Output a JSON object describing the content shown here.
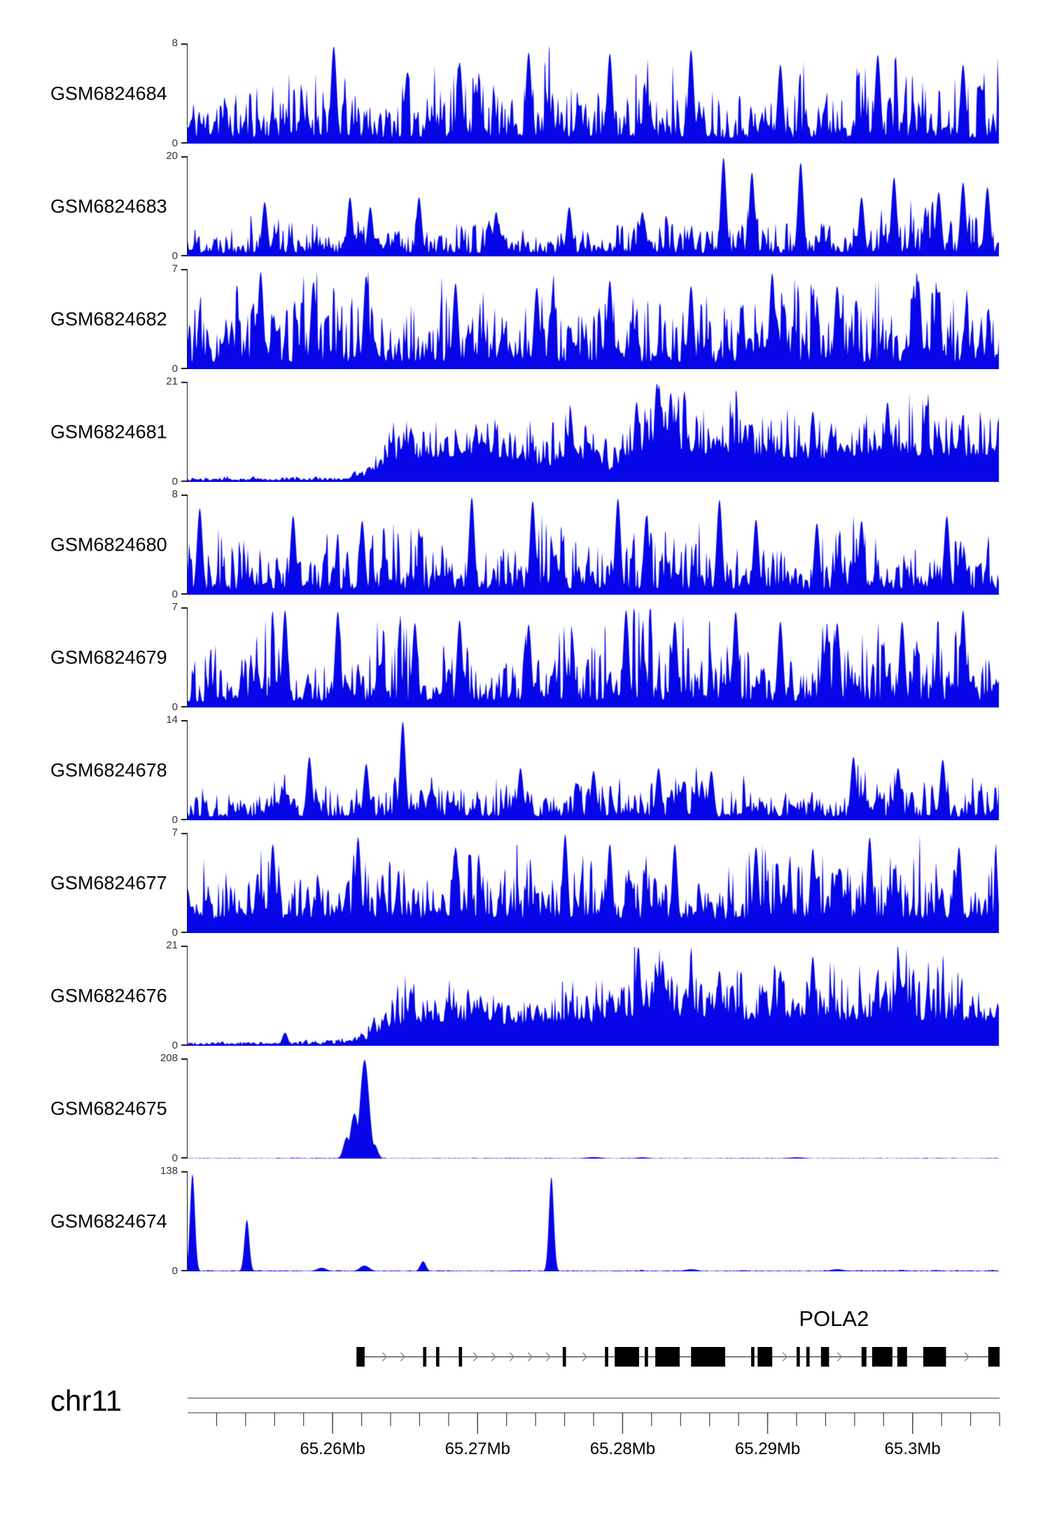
{
  "figure": {
    "background": "#ffffff",
    "y_zero_label": "0"
  },
  "colors": {
    "signal": "#0606e8",
    "gene": "#000000",
    "axis_line": "#787878",
    "arrow": "#8a8a8a",
    "text": "#000000",
    "tick": "#444444"
  },
  "chart_data": {
    "type": "area",
    "description": "Genome browser coverage tracks (histogram style) over chr11 POLA2 locus",
    "region": {
      "chromosome": "chr11",
      "start_mb": 65.25,
      "end_mb": 65.306,
      "unit": "Mb"
    },
    "tracks": [
      {
        "name": "GSM6824684",
        "ymax": 8,
        "style": "spiky",
        "seed": 11,
        "envelope": [
          [
            0,
            2.6
          ],
          [
            0.08,
            3.0
          ],
          [
            0.17,
            3.4
          ],
          [
            0.25,
            3.0
          ],
          [
            0.33,
            3.4
          ],
          [
            0.42,
            3.3
          ],
          [
            0.5,
            3.3
          ],
          [
            0.58,
            3.0
          ],
          [
            0.66,
            2.9
          ],
          [
            0.74,
            3.1
          ],
          [
            0.83,
            3.4
          ],
          [
            0.92,
            3.2
          ],
          [
            1,
            3.0
          ]
        ],
        "spikes": [
          [
            0.18,
            7.9
          ],
          [
            0.335,
            6.6
          ],
          [
            0.42,
            7.4
          ],
          [
            0.52,
            7.3
          ],
          [
            0.62,
            7.6
          ],
          [
            0.73,
            6.4
          ],
          [
            0.85,
            7.2
          ],
          [
            0.955,
            6.4
          ]
        ]
      },
      {
        "name": "GSM6824683",
        "ymax": 20,
        "style": "spiky",
        "seed": 22,
        "envelope": [
          [
            0,
            4.2
          ],
          [
            0.1,
            4.6
          ],
          [
            0.2,
            4.4
          ],
          [
            0.3,
            4.4
          ],
          [
            0.4,
            4.0
          ],
          [
            0.5,
            4.0
          ],
          [
            0.6,
            4.2
          ],
          [
            0.7,
            4.6
          ],
          [
            0.8,
            4.6
          ],
          [
            0.9,
            5.0
          ],
          [
            1,
            5.0
          ]
        ],
        "spikes": [
          [
            0.095,
            11
          ],
          [
            0.2,
            12
          ],
          [
            0.225,
            10
          ],
          [
            0.285,
            12
          ],
          [
            0.38,
            9
          ],
          [
            0.47,
            10
          ],
          [
            0.56,
            9
          ],
          [
            0.66,
            20
          ],
          [
            0.695,
            17
          ],
          [
            0.755,
            19
          ],
          [
            0.83,
            12
          ],
          [
            0.87,
            16
          ],
          [
            0.925,
            13
          ],
          [
            0.955,
            15
          ],
          [
            0.985,
            14
          ]
        ]
      },
      {
        "name": "GSM6824682",
        "ymax": 7,
        "style": "spiky",
        "seed": 33,
        "envelope": [
          [
            0,
            2.7
          ],
          [
            0.1,
            3.1
          ],
          [
            0.2,
            3.3
          ],
          [
            0.3,
            3.1
          ],
          [
            0.4,
            3.1
          ],
          [
            0.5,
            3.0
          ],
          [
            0.6,
            2.9
          ],
          [
            0.7,
            3.0
          ],
          [
            0.8,
            3.1
          ],
          [
            0.9,
            3.1
          ],
          [
            1,
            2.9
          ]
        ],
        "spikes": [
          [
            0.09,
            6.9
          ],
          [
            0.155,
            6.2
          ],
          [
            0.22,
            6.6
          ],
          [
            0.33,
            6.1
          ],
          [
            0.43,
            5.8
          ],
          [
            0.52,
            6.3
          ],
          [
            0.62,
            5.9
          ],
          [
            0.72,
            6.8
          ],
          [
            0.8,
            5.9
          ],
          [
            0.9,
            6.3
          ]
        ]
      },
      {
        "name": "GSM6824681",
        "ymax": 21,
        "style": "dense",
        "seed": 44,
        "envelope": [
          [
            0,
            0.6
          ],
          [
            0.1,
            0.7
          ],
          [
            0.19,
            0.8
          ],
          [
            0.22,
            2.5
          ],
          [
            0.25,
            8.5
          ],
          [
            0.3,
            10
          ],
          [
            0.34,
            11
          ],
          [
            0.38,
            10
          ],
          [
            0.42,
            8
          ],
          [
            0.445,
            6
          ],
          [
            0.47,
            10
          ],
          [
            0.5,
            9
          ],
          [
            0.52,
            5
          ],
          [
            0.545,
            11
          ],
          [
            0.57,
            14
          ],
          [
            0.585,
            15
          ],
          [
            0.61,
            13
          ],
          [
            0.64,
            11.5
          ],
          [
            0.67,
            12
          ],
          [
            0.7,
            11
          ],
          [
            0.75,
            10
          ],
          [
            0.78,
            9.5
          ],
          [
            0.82,
            11
          ],
          [
            0.86,
            12
          ],
          [
            0.9,
            11
          ],
          [
            0.95,
            10.5
          ],
          [
            1,
            10.5
          ]
        ],
        "spikes": [
          [
            0.553,
            17
          ],
          [
            0.578,
            21
          ],
          [
            0.595,
            19
          ],
          [
            0.77,
            15
          ],
          [
            0.862,
            17
          ]
        ]
      },
      {
        "name": "GSM6824680",
        "ymax": 8,
        "style": "spiky",
        "seed": 55,
        "envelope": [
          [
            0,
            2.5
          ],
          [
            0.1,
            2.7
          ],
          [
            0.2,
            2.7
          ],
          [
            0.3,
            2.8
          ],
          [
            0.4,
            2.9
          ],
          [
            0.5,
            2.9
          ],
          [
            0.6,
            2.8
          ],
          [
            0.7,
            2.7
          ],
          [
            0.8,
            2.6
          ],
          [
            0.9,
            2.8
          ],
          [
            1,
            2.6
          ]
        ],
        "spikes": [
          [
            0.015,
            7
          ],
          [
            0.13,
            6.4
          ],
          [
            0.215,
            6.0
          ],
          [
            0.35,
            7.9
          ],
          [
            0.425,
            7.6
          ],
          [
            0.53,
            7.8
          ],
          [
            0.565,
            6.4
          ],
          [
            0.655,
            7.7
          ],
          [
            0.7,
            6.1
          ],
          [
            0.775,
            5.8
          ],
          [
            0.83,
            6.0
          ],
          [
            0.935,
            6.4
          ]
        ]
      },
      {
        "name": "GSM6824679",
        "ymax": 7,
        "style": "spiky",
        "seed": 66,
        "envelope": [
          [
            0,
            2.6
          ],
          [
            0.1,
            2.9
          ],
          [
            0.2,
            3.0
          ],
          [
            0.3,
            2.9
          ],
          [
            0.4,
            2.8
          ],
          [
            0.5,
            3.0
          ],
          [
            0.6,
            2.9
          ],
          [
            0.7,
            3.0
          ],
          [
            0.8,
            3.0
          ],
          [
            0.9,
            3.0
          ],
          [
            1,
            3.2
          ]
        ],
        "spikes": [
          [
            0.12,
            6.9
          ],
          [
            0.185,
            6.8
          ],
          [
            0.28,
            6.0
          ],
          [
            0.335,
            6.2
          ],
          [
            0.42,
            5.9
          ],
          [
            0.54,
            6.9
          ],
          [
            0.6,
            6.1
          ],
          [
            0.675,
            6.8
          ],
          [
            0.73,
            6.1
          ],
          [
            0.8,
            6.0
          ],
          [
            0.88,
            6.1
          ],
          [
            0.955,
            6.9
          ]
        ]
      },
      {
        "name": "GSM6824678",
        "ymax": 14,
        "style": "spiky",
        "seed": 77,
        "envelope": [
          [
            0,
            2.9
          ],
          [
            0.1,
            3.1
          ],
          [
            0.2,
            3.3
          ],
          [
            0.3,
            3.4
          ],
          [
            0.4,
            3.2
          ],
          [
            0.5,
            3.2
          ],
          [
            0.6,
            3.2
          ],
          [
            0.7,
            3.0
          ],
          [
            0.8,
            3.3
          ],
          [
            0.9,
            3.4
          ],
          [
            1,
            3.2
          ]
        ],
        "spikes": [
          [
            0.15,
            9
          ],
          [
            0.22,
            8
          ],
          [
            0.265,
            14
          ],
          [
            0.41,
            7.4
          ],
          [
            0.5,
            7
          ],
          [
            0.58,
            7.4
          ],
          [
            0.645,
            7
          ],
          [
            0.82,
            9
          ],
          [
            0.875,
            7.4
          ],
          [
            0.93,
            8.6
          ]
        ]
      },
      {
        "name": "GSM6824677",
        "ymax": 7,
        "style": "spiky",
        "floor": 0.32,
        "amp": 1.5,
        "seed": 88,
        "envelope": [
          [
            0,
            3.1
          ],
          [
            0.1,
            3.3
          ],
          [
            0.2,
            3.4
          ],
          [
            0.3,
            3.3
          ],
          [
            0.4,
            3.2
          ],
          [
            0.5,
            3.4
          ],
          [
            0.6,
            3.2
          ],
          [
            0.7,
            3.0
          ],
          [
            0.8,
            3.2
          ],
          [
            0.9,
            3.3
          ],
          [
            1,
            3.3
          ]
        ],
        "spikes": [
          [
            0.105,
            6.3
          ],
          [
            0.21,
            6.8
          ],
          [
            0.33,
            6.1
          ],
          [
            0.465,
            7
          ],
          [
            0.52,
            6.3
          ],
          [
            0.6,
            6.3
          ],
          [
            0.7,
            6.1
          ],
          [
            0.77,
            6.0
          ],
          [
            0.84,
            6.8
          ],
          [
            0.95,
            6.1
          ]
        ]
      },
      {
        "name": "GSM6824676",
        "ymax": 21,
        "style": "dense",
        "seed": 99,
        "envelope": [
          [
            0,
            0.5
          ],
          [
            0.1,
            0.6
          ],
          [
            0.18,
            0.7
          ],
          [
            0.22,
            2.5
          ],
          [
            0.26,
            8.5
          ],
          [
            0.3,
            10
          ],
          [
            0.35,
            10
          ],
          [
            0.4,
            9
          ],
          [
            0.45,
            10
          ],
          [
            0.5,
            10
          ],
          [
            0.53,
            11
          ],
          [
            0.56,
            12.5
          ],
          [
            0.6,
            12
          ],
          [
            0.64,
            12
          ],
          [
            0.67,
            10.5
          ],
          [
            0.7,
            11
          ],
          [
            0.73,
            12
          ],
          [
            0.76,
            12
          ],
          [
            0.8,
            10.5
          ],
          [
            0.83,
            11
          ],
          [
            0.87,
            12
          ],
          [
            0.9,
            11
          ],
          [
            0.95,
            10.5
          ],
          [
            1,
            10.5
          ]
        ],
        "spikes": [
          [
            0.12,
            2.8
          ],
          [
            0.555,
            21
          ],
          [
            0.585,
            18
          ],
          [
            0.62,
            17
          ],
          [
            0.655,
            16
          ],
          [
            0.73,
            16
          ],
          [
            0.77,
            19
          ],
          [
            0.875,
            15
          ]
        ]
      },
      {
        "name": "GSM6824675",
        "ymax": 208,
        "style": "peak",
        "seed": 110,
        "envelope": [
          [
            0,
            1.2
          ],
          [
            1,
            1.2
          ]
        ],
        "spikes": [
          [
            0.196,
            45,
            0.004
          ],
          [
            0.2055,
            95,
            0.005
          ],
          [
            0.218,
            208,
            0.0055
          ],
          [
            0.23,
            30,
            0.004
          ],
          [
            0.5,
            3,
            0.01
          ],
          [
            0.56,
            2.5,
            0.008
          ],
          [
            0.75,
            2.5,
            0.01
          ]
        ]
      },
      {
        "name": "GSM6824674",
        "ymax": 138,
        "style": "peak",
        "seed": 121,
        "envelope": [
          [
            0,
            1.4
          ],
          [
            0.2,
            1.6
          ],
          [
            0.4,
            1.3
          ],
          [
            0.6,
            1.4
          ],
          [
            0.8,
            1.6
          ],
          [
            1,
            1.8
          ]
        ],
        "spikes": [
          [
            0.006,
            136,
            0.003
          ],
          [
            0.073,
            72,
            0.003
          ],
          [
            0.165,
            5,
            0.006
          ],
          [
            0.218,
            8,
            0.006
          ],
          [
            0.29,
            14,
            0.0035
          ],
          [
            0.448,
            132,
            0.003
          ],
          [
            0.62,
            3,
            0.008
          ],
          [
            0.8,
            3,
            0.008
          ]
        ]
      }
    ],
    "gene_track": {
      "gene": "POLA2",
      "strand": "+",
      "label_frac": 0.796,
      "span": [
        0.208,
        1.0
      ],
      "exons": [
        [
          0.208,
          0.218
        ],
        [
          0.29,
          0.294
        ],
        [
          0.306,
          0.31
        ],
        [
          0.334,
          0.338
        ],
        [
          0.462,
          0.466
        ],
        [
          0.514,
          0.518
        ],
        [
          0.526,
          0.556
        ],
        [
          0.563,
          0.567
        ],
        [
          0.576,
          0.606
        ],
        [
          0.62,
          0.662
        ],
        [
          0.694,
          0.698
        ],
        [
          0.702,
          0.72
        ],
        [
          0.75,
          0.754
        ],
        [
          0.762,
          0.766
        ],
        [
          0.78,
          0.79
        ],
        [
          0.83,
          0.836
        ],
        [
          0.843,
          0.868
        ],
        [
          0.874,
          0.886
        ],
        [
          0.906,
          0.934
        ],
        [
          0.986,
          1.0
        ]
      ]
    },
    "axis": {
      "chrom_label": "chr11",
      "major_ticks": [
        {
          "mb": 65.26,
          "label": "65.26Mb"
        },
        {
          "mb": 65.27,
          "label": "65.27Mb"
        },
        {
          "mb": 65.28,
          "label": "65.28Mb"
        },
        {
          "mb": 65.29,
          "label": "65.29Mb"
        },
        {
          "mb": 65.3,
          "label": "65.3Mb"
        }
      ],
      "minor_step_mb": 0.002
    }
  }
}
